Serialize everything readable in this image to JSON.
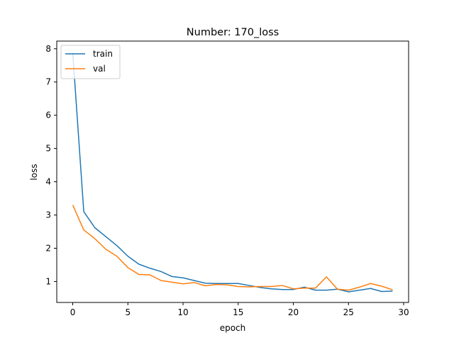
{
  "chart_data": {
    "type": "line",
    "title": "Number: 170_loss",
    "xlabel": "epoch",
    "ylabel": "loss",
    "xlim": [
      -1.45,
      30.45
    ],
    "ylim": [
      0.37,
      8.23
    ],
    "xticks": [
      0,
      5,
      10,
      15,
      20,
      25,
      30
    ],
    "yticks": [
      1,
      2,
      3,
      4,
      5,
      6,
      7,
      8
    ],
    "grid": false,
    "legend_position": "top-left",
    "x": [
      0,
      1,
      2,
      3,
      4,
      5,
      6,
      7,
      8,
      9,
      10,
      11,
      12,
      13,
      14,
      15,
      16,
      17,
      18,
      19,
      20,
      21,
      22,
      23,
      24,
      25,
      26,
      27,
      28,
      29
    ],
    "series": [
      {
        "name": "train",
        "color": "#1f77b4",
        "values": [
          7.88,
          3.1,
          2.62,
          2.35,
          2.08,
          1.76,
          1.52,
          1.4,
          1.3,
          1.15,
          1.11,
          1.03,
          0.95,
          0.94,
          0.94,
          0.94,
          0.88,
          0.82,
          0.78,
          0.76,
          0.76,
          0.83,
          0.74,
          0.74,
          0.77,
          0.69,
          0.74,
          0.79,
          0.7,
          0.71
        ]
      },
      {
        "name": "val",
        "color": "#ff7f0e",
        "values": [
          3.3,
          2.55,
          2.29,
          1.97,
          1.76,
          1.42,
          1.21,
          1.2,
          1.03,
          0.98,
          0.93,
          0.97,
          0.87,
          0.91,
          0.9,
          0.85,
          0.84,
          0.85,
          0.85,
          0.88,
          0.78,
          0.8,
          0.8,
          1.14,
          0.77,
          0.74,
          0.83,
          0.94,
          0.86,
          0.75
        ]
      }
    ]
  }
}
